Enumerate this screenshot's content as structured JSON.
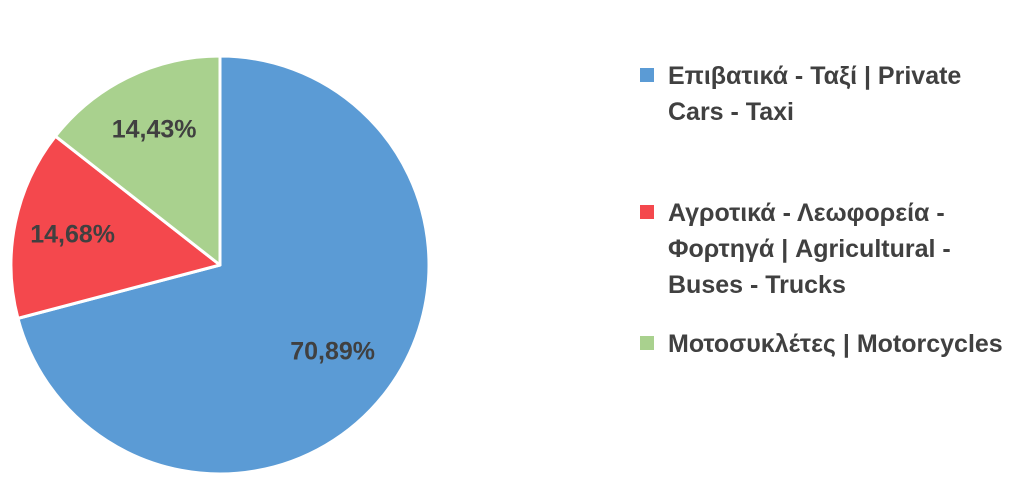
{
  "chart_data": {
    "type": "pie",
    "title": "",
    "categories": [
      "Επιβατικά - Ταξί | Private Cars - Taxi",
      "Αγροτικά - Λεωφορεία - Φορτηγά | Agricultural - Buses - Trucks",
      "Μοτοσυκλέτες | Motorcycles"
    ],
    "values": [
      70.89,
      14.68,
      14.43
    ],
    "labels": [
      "70,89%",
      "14,68%",
      "14,43%"
    ],
    "colors": [
      "#5b9bd5",
      "#f4484d",
      "#a9d18e"
    ],
    "legend_position": "right"
  }
}
